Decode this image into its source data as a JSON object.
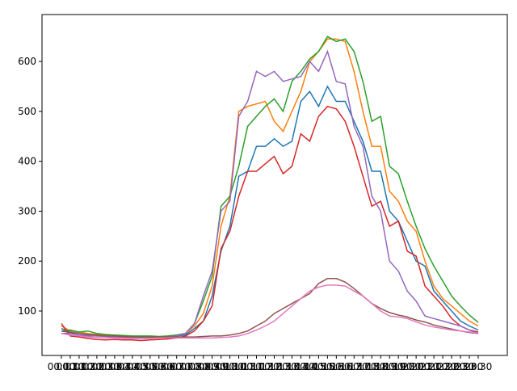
{
  "chart_data": {
    "type": "line",
    "categories": [
      "00:00",
      "00:30",
      "01:00",
      "01:30",
      "02:00",
      "02:30",
      "03:00",
      "03:30",
      "04:00",
      "04:30",
      "05:00",
      "05:30",
      "06:00",
      "06:30",
      "07:00",
      "07:30",
      "08:00",
      "08:30",
      "09:00",
      "09:30",
      "10:00",
      "10:30",
      "11:00",
      "11:30",
      "12:00",
      "12:30",
      "13:00",
      "13:30",
      "14:00",
      "14:30",
      "15:00",
      "15:30",
      "16:00",
      "16:30",
      "17:00",
      "17:30",
      "18:00",
      "18:30",
      "19:00",
      "19:30",
      "20:00",
      "20:30",
      "21:00",
      "21:30",
      "22:00",
      "22:30",
      "23:00",
      "23:30"
    ],
    "series": [
      {
        "color": "#1f77b4",
        "values": [
          65,
          58,
          55,
          52,
          50,
          50,
          49,
          48,
          48,
          47,
          47,
          47,
          48,
          50,
          52,
          65,
          80,
          130,
          220,
          270,
          370,
          380,
          430,
          430,
          445,
          430,
          440,
          520,
          540,
          510,
          550,
          520,
          520,
          480,
          440,
          380,
          380,
          300,
          280,
          240,
          200,
          190,
          140,
          120,
          100,
          80,
          70,
          62
        ]
      },
      {
        "color": "#ff7f0e",
        "values": [
          70,
          60,
          58,
          55,
          53,
          52,
          50,
          50,
          49,
          48,
          48,
          48,
          50,
          52,
          55,
          70,
          95,
          150,
          270,
          330,
          500,
          510,
          515,
          520,
          480,
          460,
          500,
          540,
          600,
          620,
          645,
          645,
          640,
          580,
          500,
          430,
          430,
          340,
          320,
          280,
          260,
          200,
          150,
          125,
          110,
          95,
          80,
          70
        ]
      },
      {
        "color": "#2ca02c",
        "values": [
          60,
          62,
          58,
          60,
          55,
          53,
          52,
          51,
          50,
          50,
          50,
          49,
          50,
          52,
          55,
          75,
          120,
          170,
          310,
          330,
          390,
          470,
          490,
          510,
          525,
          500,
          560,
          580,
          605,
          620,
          650,
          640,
          645,
          620,
          560,
          480,
          490,
          390,
          375,
          320,
          270,
          225,
          190,
          160,
          130,
          110,
          92,
          77
        ]
      },
      {
        "color": "#d62728",
        "values": [
          75,
          50,
          48,
          45,
          43,
          42,
          43,
          42,
          42,
          41,
          42,
          43,
          44,
          46,
          50,
          60,
          80,
          110,
          225,
          260,
          330,
          380,
          380,
          395,
          410,
          375,
          390,
          455,
          440,
          490,
          510,
          505,
          480,
          430,
          370,
          310,
          320,
          270,
          280,
          220,
          210,
          150,
          130,
          110,
          85,
          70,
          62,
          58
        ]
      },
      {
        "color": "#9467bd",
        "values": [
          55,
          55,
          52,
          50,
          50,
          49,
          48,
          47,
          47,
          47,
          47,
          47,
          48,
          50,
          55,
          75,
          130,
          180,
          300,
          320,
          490,
          520,
          580,
          570,
          580,
          560,
          565,
          570,
          600,
          580,
          620,
          560,
          555,
          470,
          430,
          330,
          300,
          200,
          180,
          140,
          120,
          90,
          85,
          80,
          75,
          70,
          62,
          55
        ]
      },
      {
        "color": "#8c564b",
        "values": [
          60,
          57,
          55,
          53,
          52,
          50,
          50,
          49,
          48,
          48,
          48,
          48,
          48,
          48,
          48,
          48,
          49,
          50,
          50,
          52,
          55,
          60,
          70,
          80,
          95,
          105,
          115,
          125,
          135,
          155,
          165,
          165,
          158,
          145,
          130,
          115,
          105,
          97,
          92,
          88,
          82,
          78,
          72,
          68,
          64,
          60,
          57,
          55
        ]
      },
      {
        "color": "#e377c2",
        "values": [
          55,
          52,
          50,
          48,
          47,
          46,
          46,
          45,
          45,
          45,
          45,
          46,
          46,
          46,
          46,
          46,
          46,
          46,
          47,
          48,
          50,
          55,
          62,
          70,
          80,
          95,
          110,
          125,
          140,
          148,
          152,
          152,
          150,
          140,
          130,
          115,
          100,
          90,
          88,
          85,
          78,
          72,
          68,
          65,
          62,
          60,
          58,
          56
        ]
      }
    ],
    "ylim": [
      11,
      694
    ],
    "yticks": [
      100,
      200,
      300,
      400,
      500,
      600
    ],
    "grid": false
  }
}
